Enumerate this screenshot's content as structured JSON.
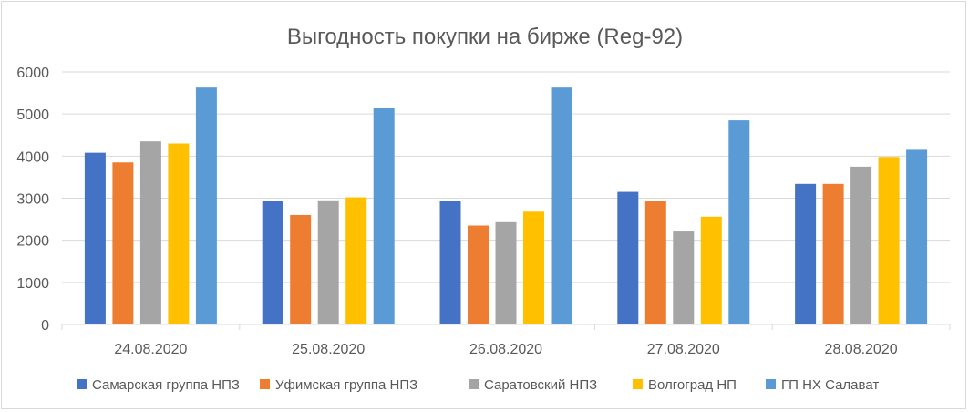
{
  "chart_data": {
    "type": "bar",
    "title": "Выгодность покупки на бирже (Reg-92)",
    "categories": [
      "24.08.2020",
      "25.08.2020",
      "26.08.2020",
      "27.08.2020",
      "28.08.2020"
    ],
    "series": [
      {
        "name": "Самарская группа НПЗ",
        "color": "#4472c4",
        "values": [
          4080,
          2930,
          2930,
          3150,
          3340
        ]
      },
      {
        "name": "Уфимская группа НПЗ",
        "color": "#ed7d31",
        "values": [
          3850,
          2600,
          2350,
          2930,
          3340
        ]
      },
      {
        "name": "Саратовский НПЗ",
        "color": "#a5a5a5",
        "values": [
          4350,
          2950,
          2430,
          2230,
          3750
        ]
      },
      {
        "name": "Волгоград НП",
        "color": "#ffc000",
        "values": [
          4300,
          3020,
          2680,
          2560,
          3980
        ]
      },
      {
        "name": "ГП НХ Салават",
        "color": "#5b9bd5",
        "values": [
          5650,
          5150,
          5650,
          4850,
          4150
        ]
      }
    ],
    "ylim": [
      0,
      6000
    ],
    "yticks": [
      "0",
      "1000",
      "2000",
      "3000",
      "4000",
      "5000",
      "6000"
    ],
    "grid": true,
    "legend": "bottom"
  }
}
